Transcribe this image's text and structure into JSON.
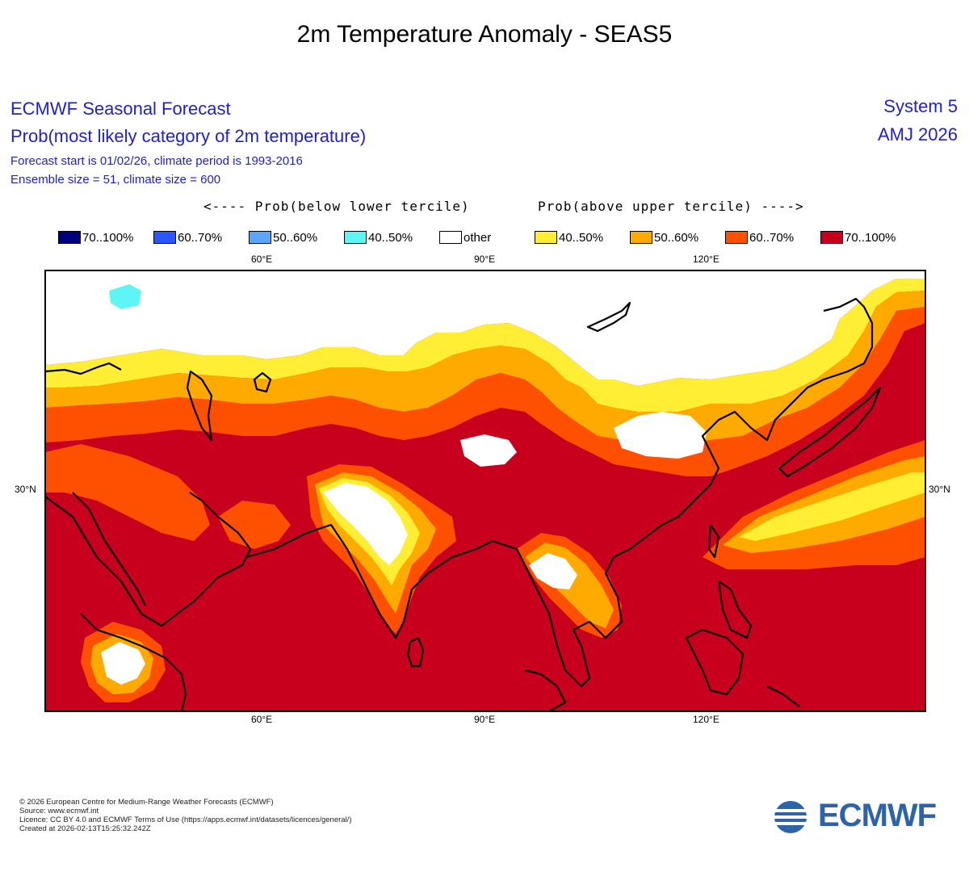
{
  "title": "2m Temperature Anomaly - SEAS5",
  "header": {
    "line1": "ECMWF Seasonal Forecast",
    "line2": "Prob(most likely category of 2m temperature)",
    "line3": "Forecast start is 01/02/26, climate period is 1993-2016",
    "line4": "Ensemble size = 51, climate size = 600",
    "system": "System 5",
    "period": "AMJ 2026"
  },
  "tercile_labels": {
    "below": "<---- Prob(below lower tercile)",
    "above": "Prob(above upper tercile) ---->"
  },
  "legend": [
    {
      "label": "70..100%",
      "color": "#00007f"
    },
    {
      "label": "60..70%",
      "color": "#2a55ff"
    },
    {
      "label": "50..60%",
      "color": "#5aa6ff"
    },
    {
      "label": "40..50%",
      "color": "#5ef5f5"
    },
    {
      "label": "other",
      "color": "#ffffff"
    },
    {
      "label": "40..50%",
      "color": "#ffee33"
    },
    {
      "label": "50..60%",
      "color": "#ffaa00"
    },
    {
      "label": "60..70%",
      "color": "#ff4f00"
    },
    {
      "label": "70..100%",
      "color": "#c8001e"
    }
  ],
  "axes": {
    "top_ticks": [
      "60°E",
      "90°E",
      "120°E"
    ],
    "bottom_ticks": [
      "60°E",
      "90°E",
      "120°E"
    ],
    "left_lat": "30°N",
    "right_lat": "30°N"
  },
  "footer": [
    "© 2026 European Centre for Medium-Range Weather Forecasts (ECMWF)",
    "Source: www.ecmwf.int",
    "Licence: CC BY 4.0 and ECMWF Terms of Use (https://apps.ecmwf.int/datasets/licences/general/)",
    "Created at 2026-02-13T15:25:32.242Z"
  ],
  "logo_text": "ECMWF"
}
